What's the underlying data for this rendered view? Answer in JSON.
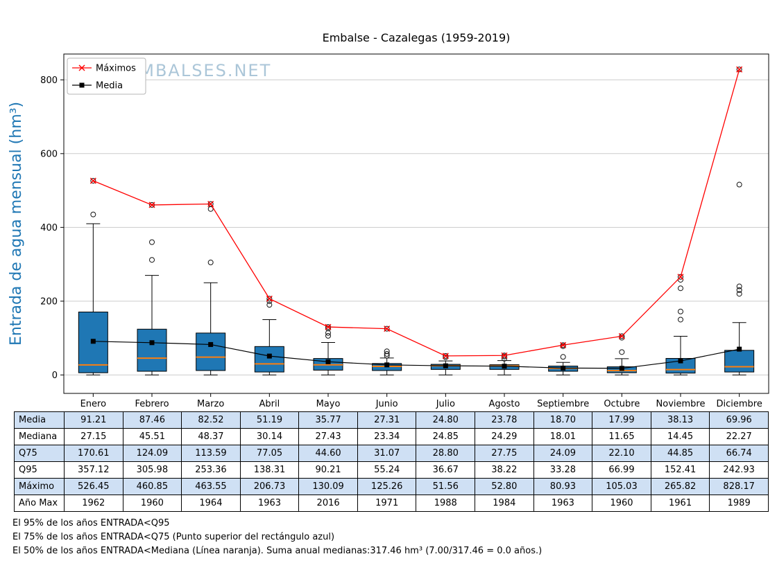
{
  "watermark": "WWW.EMBALSES.NET",
  "chart_data": {
    "type": "boxplot",
    "title": "Embalse - Cazalegas (1959-2019)",
    "ylabel": "Entrada de agua mensual (hm³)",
    "ylim": [
      -50,
      870
    ],
    "yticks": [
      0,
      200,
      400,
      600,
      800
    ],
    "grid": "horizontal",
    "months": [
      "Enero",
      "Febrero",
      "Marzo",
      "Abril",
      "Mayo",
      "Junio",
      "Julio",
      "Agosto",
      "Septiembre",
      "Octubre",
      "Noviembre",
      "Diciembre"
    ],
    "legend": [
      {
        "label": "Máximos",
        "marker": "x",
        "color": "#ff0000"
      },
      {
        "label": "Media",
        "marker": "square",
        "color": "#000000"
      }
    ],
    "series": {
      "media": [
        91.21,
        87.46,
        82.52,
        51.19,
        35.77,
        27.31,
        24.8,
        23.78,
        18.7,
        17.99,
        38.13,
        69.96
      ],
      "mediana": [
        27.15,
        45.51,
        48.37,
        30.14,
        27.43,
        23.34,
        24.85,
        24.29,
        18.01,
        11.65,
        14.45,
        22.27
      ],
      "q75": [
        170.61,
        124.09,
        113.59,
        77.05,
        44.6,
        31.07,
        28.8,
        27.75,
        24.09,
        22.1,
        44.85,
        66.74
      ],
      "q95": [
        357.12,
        305.98,
        253.36,
        138.31,
        90.21,
        55.24,
        36.67,
        38.22,
        33.28,
        66.99,
        152.41,
        242.93
      ],
      "maximo": [
        526.45,
        460.85,
        463.55,
        206.73,
        130.09,
        125.26,
        51.56,
        52.8,
        80.93,
        105.03,
        265.82,
        828.17
      ],
      "ano_max": [
        1962,
        1960,
        1964,
        1963,
        2016,
        1971,
        1988,
        1984,
        1963,
        1960,
        1961,
        1989
      ]
    },
    "box_estimated": {
      "q25": [
        6,
        10,
        12,
        8,
        13,
        12,
        15,
        15,
        10,
        6,
        5,
        8
      ],
      "whisker_low": [
        0,
        0,
        0,
        0,
        0,
        0,
        0,
        0,
        0,
        0,
        0,
        0
      ],
      "whisker_high": [
        410,
        270,
        250,
        150,
        88,
        46,
        38,
        39,
        34,
        44,
        105,
        142
      ],
      "outliers": [
        [
          435
        ],
        [
          312,
          360
        ],
        [
          305,
          450
        ],
        [
          190,
          200
        ],
        [
          106,
          114,
          126
        ],
        [
          52,
          57,
          64
        ],
        [
          48
        ],
        [
          44,
          50
        ],
        [
          49,
          78
        ],
        [
          62,
          101
        ],
        [
          150,
          172,
          235,
          258
        ],
        [
          220,
          230,
          240,
          516
        ]
      ]
    },
    "colors": {
      "box_fill": "#1f77b4",
      "box_edge": "#000000",
      "median_line": "#ff7f0e",
      "max_line": "#ff0000",
      "mean_line": "#000000",
      "ylabel": "#1f77b4",
      "grid": "#cccccc",
      "table_shaded_row": "#cfe0f4",
      "watermark": "#7fa8c4"
    }
  },
  "table": {
    "rows": [
      {
        "label": "Media",
        "key": "media",
        "shaded": true
      },
      {
        "label": "Mediana",
        "key": "mediana",
        "shaded": false
      },
      {
        "label": "Q75",
        "key": "q75",
        "shaded": true
      },
      {
        "label": "Q95",
        "key": "q95",
        "shaded": false
      },
      {
        "label": "Máximo",
        "key": "maximo",
        "shaded": true
      },
      {
        "label": "Año Max",
        "key": "ano_max",
        "shaded": false
      }
    ]
  },
  "footnotes": [
    "El 95% de los años ENTRADA<Q95",
    "El 75% de los años ENTRADA<Q75 (Punto superior del rectángulo azul)",
    "El 50% de los años ENTRADA<Mediana (Línea naranja). Suma anual medianas:317.46 hm³ (7.00/317.46 = 0.0 años.)"
  ]
}
